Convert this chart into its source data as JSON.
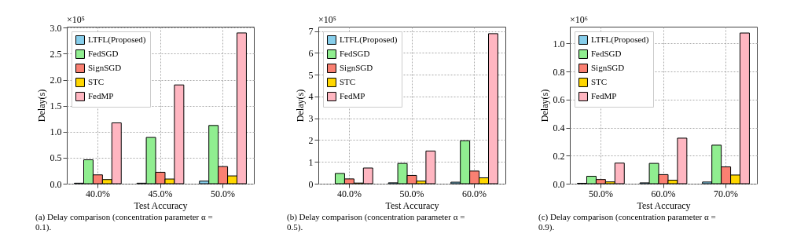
{
  "chart_data": [
    {
      "type": "bar",
      "title": "(a) Delay comparison (concentration parameter α = 0.1).",
      "xlabel": "Test Accuracy",
      "ylabel": "Delay(s)",
      "annotations": [
        "×10⁵"
      ],
      "categories": [
        "40.0%",
        "45.0%",
        "50.0%"
      ],
      "series": [
        {
          "name": "LTFL(Proposed)",
          "color": "#87ceeb",
          "values": [
            0.01,
            0.01,
            0.05
          ]
        },
        {
          "name": "FedSGD",
          "color": "#90ee90",
          "values": [
            0.46,
            0.89,
            1.12
          ]
        },
        {
          "name": "SignSGD",
          "color": "#fa8072",
          "values": [
            0.17,
            0.22,
            0.33
          ]
        },
        {
          "name": "STC",
          "color": "#ffd700",
          "values": [
            0.08,
            0.09,
            0.15
          ]
        },
        {
          "name": "FedMP",
          "color": "#ffb6c1",
          "values": [
            1.17,
            1.9,
            2.9
          ]
        }
      ],
      "ylim": [
        0,
        3.02
      ],
      "yticks": [
        {
          "value": 0,
          "label": "0.0"
        },
        0.5,
        {
          "value": 1,
          "label": "1.0"
        },
        1.5,
        {
          "value": 2,
          "label": "2.0"
        },
        2.5,
        {
          "value": 3,
          "label": "3.0"
        }
      ],
      "grid": true,
      "legend": "top left"
    },
    {
      "type": "bar",
      "title": "(b) Delay comparison (concentration parameter α = 0.5).",
      "xlabel": "Test Accuracy",
      "ylabel": "Delay(s)",
      "annotations": [
        "×10⁵"
      ],
      "categories": [
        "40.0%",
        "50.0%",
        "60.0%"
      ],
      "series": [
        {
          "name": "LTFL(Proposed)",
          "color": "#87ceeb",
          "values": [
            null,
            0.04,
            0.07
          ]
        },
        {
          "name": "FedSGD",
          "color": "#90ee90",
          "values": [
            0.47,
            0.93,
            1.97
          ]
        },
        {
          "name": "SignSGD",
          "color": "#fa8072",
          "values": [
            0.22,
            0.38,
            0.58
          ]
        },
        {
          "name": "STC",
          "color": "#ffd700",
          "values": [
            0.03,
            0.12,
            0.27
          ]
        },
        {
          "name": "FedMP",
          "color": "#ffb6c1",
          "values": [
            0.72,
            1.5,
            6.88
          ]
        }
      ],
      "ylim": [
        0,
        7.2
      ],
      "yticks": [
        0,
        1,
        2,
        3,
        4,
        5,
        6,
        7
      ],
      "grid": true,
      "legend": "top left"
    },
    {
      "type": "bar",
      "title": "(c) Delay comparison (concentration parameter α = 0.9).",
      "xlabel": "Test Accuracy",
      "ylabel": "Delay(s)",
      "annotations": [
        "×10⁶"
      ],
      "categories": [
        "50.0%",
        "60.0%",
        "70.0%"
      ],
      "series": [
        {
          "name": "LTFL(Proposed)",
          "color": "#87ceeb",
          "values": [
            0.003,
            0.006,
            0.012
          ]
        },
        {
          "name": "FedSGD",
          "color": "#90ee90",
          "values": [
            0.053,
            0.145,
            0.275
          ]
        },
        {
          "name": "SignSGD",
          "color": "#fa8072",
          "values": [
            0.03,
            0.065,
            0.12
          ]
        },
        {
          "name": "STC",
          "color": "#ffd700",
          "values": [
            0.013,
            0.025,
            0.062
          ]
        },
        {
          "name": "FedMP",
          "color": "#ffb6c1",
          "values": [
            0.147,
            0.325,
            1.075
          ]
        }
      ],
      "ylim": [
        0,
        1.12
      ],
      "yticks": [
        {
          "value": 0,
          "label": "0.0"
        },
        0.2,
        0.4,
        0.6,
        0.8,
        {
          "value": 1,
          "label": "1.0"
        }
      ],
      "grid": true,
      "legend": "top left"
    }
  ]
}
